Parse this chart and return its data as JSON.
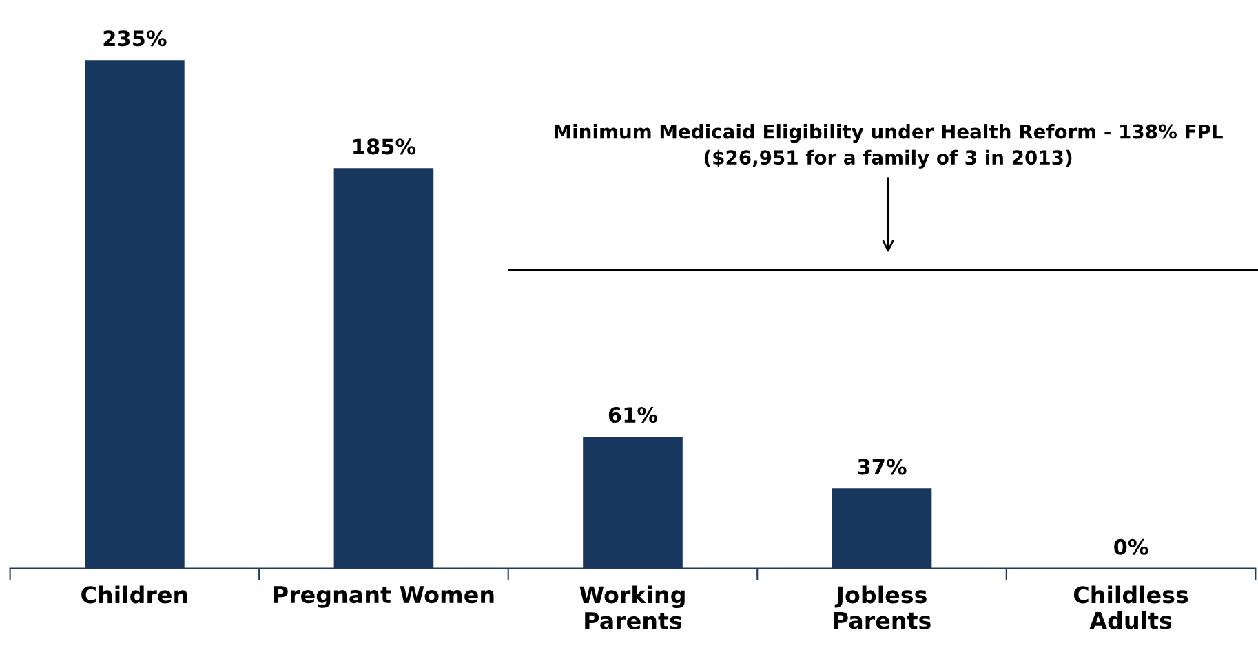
{
  "chart_data": {
    "type": "bar",
    "categories": [
      "Children",
      "Pregnant Women",
      "Working\nParents",
      "Jobless\nParents",
      "Childless\nAdults"
    ],
    "values": [
      235,
      185,
      61,
      37,
      0
    ],
    "color": "#17375e",
    "data_labels": true,
    "value_labels": [
      "235%",
      "185%",
      "61%",
      "37%",
      "0%"
    ],
    "ref_lines": [
      {
        "axis": "y",
        "value": 138,
        "label": "Minimum Medicaid Eligibility under Health Reform - 138% FPL\n($26,951 for a family of 3 in 2013)",
        "color": "#000000",
        "line_style": "solid"
      }
    ],
    "grid": false,
    "legend": false
  }
}
